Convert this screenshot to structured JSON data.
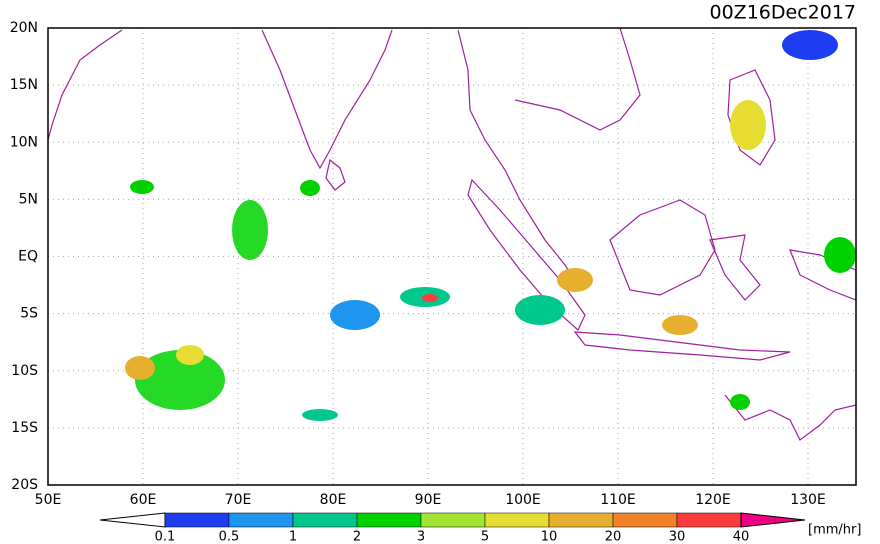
{
  "title": "00Z16Dec2017",
  "lat_labels": [
    "20N",
    "15N",
    "10N",
    "5N",
    "EQ",
    "5S",
    "10S",
    "15S",
    "20S"
  ],
  "lon_labels": [
    "50E",
    "60E",
    "70E",
    "80E",
    "90E",
    "100E",
    "110E",
    "120E",
    "130E"
  ],
  "colorbar": {
    "labels": [
      "0.1",
      "0.5",
      "1",
      "2",
      "3",
      "5",
      "10",
      "20",
      "30",
      "40"
    ],
    "colors": [
      "#ffffff",
      "#1e3cf0",
      "#1e96f0",
      "#00c88c",
      "#00d200",
      "#a0e632",
      "#e6dc32",
      "#e6af2d",
      "#f08228",
      "#fa3c3c",
      "#f00082"
    ],
    "unit": "[mm/hr]"
  }
}
